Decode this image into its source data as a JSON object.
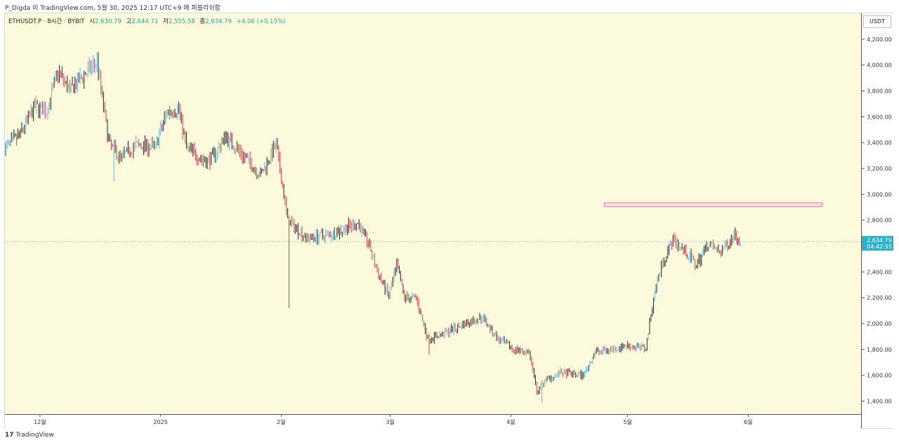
{
  "header": {
    "attribution": "P_Digda 이 TradingView.com, 5월 30, 2025 12:17 UTC+9 에 퍼블리쉬함"
  },
  "legend": {
    "symbol": "ETHUSDT.P · 8시간 · BYBIT",
    "open_label": "시",
    "open_value": "2,630.79",
    "high_label": "고",
    "high_value": "2,644.71",
    "low_label": "저",
    "low_value": "2,555.58",
    "close_label": "종",
    "close_value": "2,634.79",
    "change": "+4.00 (+0.15%)"
  },
  "currency": "USDT",
  "last_price_label": {
    "price": "2,634.79",
    "countdown": "04:42:55"
  },
  "footer": {
    "logo": "17",
    "brand": "TradingView"
  },
  "colors": {
    "up": "#26a69a",
    "up_accent": "#5bbcdb",
    "down": "#e03a4f",
    "background": "#fdf9dd",
    "zone_border": "#e07aa8",
    "zone_fill": "#fbe0ea",
    "price_label_bg": "#29b2c8"
  },
  "chart_data": {
    "type": "candlestick",
    "symbol": "ETHUSDT.P",
    "interval": "8h",
    "exchange": "BYBIT",
    "y_unit": "USDT",
    "ylim": [
      1300,
      4400
    ],
    "yticks": [
      1400,
      1600,
      1800,
      2000,
      2200,
      2400,
      2600,
      2800,
      3000,
      3200,
      3400,
      3600,
      3800,
      4000,
      4200
    ],
    "ytick_labels": [
      "1,400.00",
      "1,600.00",
      "1,800.00",
      "2,000.00",
      "2,200.00",
      "2,400.00",
      "2,600.00",
      "2,800.00",
      "3,000.00",
      "3,200.00",
      "3,400.00",
      "3,600.00",
      "3,800.00",
      "4,000.00",
      "4,200.00"
    ],
    "xlim": [
      "2024-11-22",
      "2025-06-30"
    ],
    "xticks": [
      {
        "date": "2024-12-01",
        "label": "12월"
      },
      {
        "date": "2025-01-01",
        "label": "2025"
      },
      {
        "date": "2025-02-01",
        "label": "2월"
      },
      {
        "date": "2025-03-01",
        "label": "3월"
      },
      {
        "date": "2025-04-01",
        "label": "4월"
      },
      {
        "date": "2025-05-01",
        "label": "5월"
      },
      {
        "date": "2025-06-01",
        "label": "6월"
      }
    ],
    "price_path": [
      {
        "date": "2024-11-22",
        "price": 3350
      },
      {
        "date": "2024-11-26",
        "price": 3450
      },
      {
        "date": "2024-11-30",
        "price": 3680
      },
      {
        "date": "2024-12-03",
        "price": 3640
      },
      {
        "date": "2024-12-06",
        "price": 3950
      },
      {
        "date": "2024-12-09",
        "price": 3800
      },
      {
        "date": "2024-12-12",
        "price": 3900
      },
      {
        "date": "2024-12-16",
        "price": 4030
      },
      {
        "date": "2024-12-19",
        "price": 3400
      },
      {
        "date": "2024-12-22",
        "price": 3280
      },
      {
        "date": "2024-12-26",
        "price": 3380
      },
      {
        "date": "2024-12-31",
        "price": 3370
      },
      {
        "date": "2025-01-03",
        "price": 3640
      },
      {
        "date": "2025-01-06",
        "price": 3660
      },
      {
        "date": "2025-01-08",
        "price": 3360
      },
      {
        "date": "2025-01-13",
        "price": 3250
      },
      {
        "date": "2025-01-15",
        "price": 3300
      },
      {
        "date": "2025-01-18",
        "price": 3450
      },
      {
        "date": "2025-01-21",
        "price": 3350
      },
      {
        "date": "2025-01-27",
        "price": 3150
      },
      {
        "date": "2025-01-31",
        "price": 3380
      },
      {
        "date": "2025-02-03",
        "price": 2800
      },
      {
        "date": "2025-02-08",
        "price": 2660
      },
      {
        "date": "2025-02-15",
        "price": 2700
      },
      {
        "date": "2025-02-21",
        "price": 2780
      },
      {
        "date": "2025-02-24",
        "price": 2600
      },
      {
        "date": "2025-02-26",
        "price": 2400
      },
      {
        "date": "2025-03-01",
        "price": 2210
      },
      {
        "date": "2025-03-03",
        "price": 2450
      },
      {
        "date": "2025-03-05",
        "price": 2200
      },
      {
        "date": "2025-03-08",
        "price": 2200
      },
      {
        "date": "2025-03-11",
        "price": 1880
      },
      {
        "date": "2025-03-15",
        "price": 1920
      },
      {
        "date": "2025-03-19",
        "price": 1980
      },
      {
        "date": "2025-03-25",
        "price": 2050
      },
      {
        "date": "2025-03-29",
        "price": 1880
      },
      {
        "date": "2025-04-02",
        "price": 1800
      },
      {
        "date": "2025-04-06",
        "price": 1780
      },
      {
        "date": "2025-04-08",
        "price": 1470
      },
      {
        "date": "2025-04-10",
        "price": 1560
      },
      {
        "date": "2025-04-14",
        "price": 1620
      },
      {
        "date": "2025-04-20",
        "price": 1600
      },
      {
        "date": "2025-04-23",
        "price": 1780
      },
      {
        "date": "2025-04-27",
        "price": 1800
      },
      {
        "date": "2025-05-01",
        "price": 1830
      },
      {
        "date": "2025-05-06",
        "price": 1810
      },
      {
        "date": "2025-05-08",
        "price": 2200
      },
      {
        "date": "2025-05-10",
        "price": 2450
      },
      {
        "date": "2025-05-13",
        "price": 2650
      },
      {
        "date": "2025-05-16",
        "price": 2560
      },
      {
        "date": "2025-05-19",
        "price": 2450
      },
      {
        "date": "2025-05-22",
        "price": 2620
      },
      {
        "date": "2025-05-25",
        "price": 2550
      },
      {
        "date": "2025-05-27",
        "price": 2620
      },
      {
        "date": "2025-05-29",
        "price": 2700
      },
      {
        "date": "2025-05-30",
        "price": 2635
      }
    ],
    "wick_extremes": [
      {
        "date": "2024-12-16",
        "high": 4100
      },
      {
        "date": "2024-12-20",
        "low": 3100
      },
      {
        "date": "2025-02-03",
        "low": 2120
      },
      {
        "date": "2025-03-11",
        "low": 1760
      },
      {
        "date": "2025-04-09",
        "low": 1390
      }
    ],
    "annotations": [
      {
        "type": "rectangle",
        "date_start": "2025-04-25",
        "date_end": "2025-06-20",
        "price_low": 2905,
        "price_high": 2935
      }
    ],
    "last_price": 2634.79,
    "grid": false
  }
}
